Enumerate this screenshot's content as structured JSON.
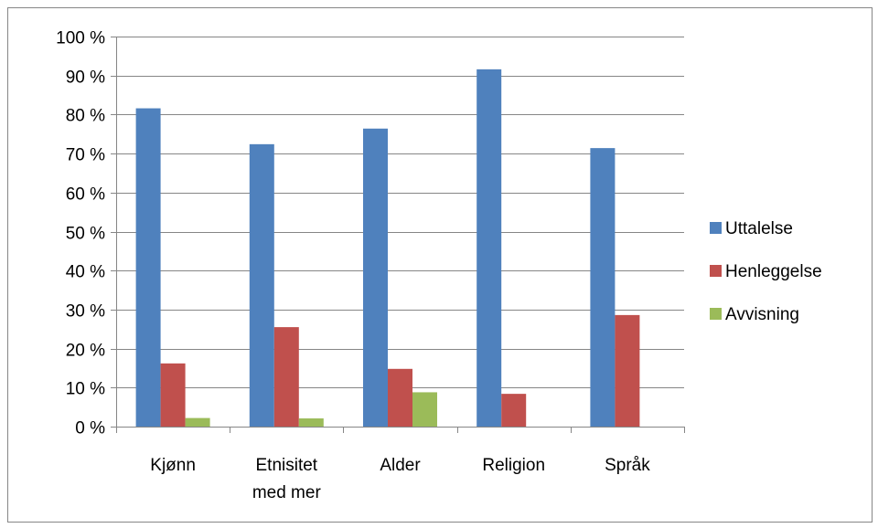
{
  "chart_data": {
    "type": "bar",
    "categories": [
      "Kjønn",
      "Etnisitet med mer",
      "Alder",
      "Religion",
      "Språk"
    ],
    "category_lines": [
      [
        "Kjønn"
      ],
      [
        "Etnisitet",
        "med mer"
      ],
      [
        "Alder"
      ],
      [
        "Religion"
      ],
      [
        "Språk"
      ]
    ],
    "series": [
      {
        "name": "Uttalelse",
        "color": "#4F81BD",
        "values": [
          81.6,
          72.4,
          76.4,
          91.6,
          71.4
        ]
      },
      {
        "name": "Henleggelse",
        "color": "#C0504D",
        "values": [
          16.2,
          25.5,
          14.8,
          8.4,
          28.6
        ]
      },
      {
        "name": "Avvisning",
        "color": "#9BBB59",
        "values": [
          2.2,
          2.1,
          8.8,
          0,
          0
        ]
      }
    ],
    "ylim": [
      0,
      100
    ],
    "yticks": [
      0,
      10,
      20,
      30,
      40,
      50,
      60,
      70,
      80,
      90,
      100
    ],
    "ytick_labels": [
      "0 %",
      "10 %",
      "20 %",
      "30 %",
      "40 %",
      "50 %",
      "60 %",
      "70 %",
      "80 %",
      "90 %",
      "100 %"
    ],
    "title": "",
    "xlabel": "",
    "ylabel": "",
    "grid": true,
    "legend_position": "right",
    "gridline_color": "#868686",
    "axis_color": "#868686"
  }
}
